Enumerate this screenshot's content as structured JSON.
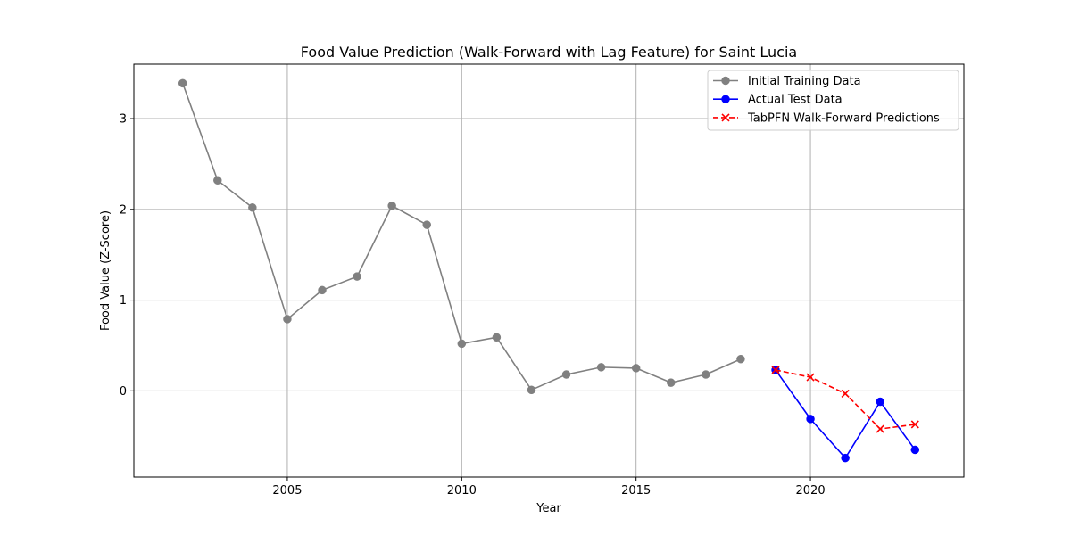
{
  "chart_data": {
    "type": "line",
    "title": "Food Value Prediction (Walk-Forward with Lag Feature) for Saint Lucia",
    "xlabel": "Year",
    "ylabel": "Food Value (Z-Score)",
    "xlim": [
      2000.6,
      2024.4
    ],
    "ylim": [
      -0.95,
      3.6
    ],
    "xticks": [
      2005,
      2010,
      2015,
      2020
    ],
    "yticks": [
      0,
      1,
      2,
      3
    ],
    "grid": true,
    "legend_position": "upper right",
    "series": [
      {
        "name": "Initial Training Data",
        "color": "#808080",
        "line_style": "solid",
        "marker": "circle",
        "x": [
          2002,
          2003,
          2004,
          2005,
          2006,
          2007,
          2008,
          2009,
          2010,
          2011,
          2012,
          2013,
          2014,
          2015,
          2016,
          2017,
          2018
        ],
        "y": [
          3.39,
          2.32,
          2.02,
          0.79,
          1.11,
          1.26,
          2.04,
          1.83,
          0.52,
          0.59,
          0.01,
          0.18,
          0.26,
          0.25,
          0.09,
          0.18,
          0.35
        ]
      },
      {
        "name": "Actual Test Data",
        "color": "#0000ff",
        "line_style": "solid",
        "marker": "circle",
        "x": [
          2019,
          2020,
          2021,
          2022,
          2023
        ],
        "y": [
          0.23,
          -0.31,
          -0.74,
          -0.12,
          -0.65
        ]
      },
      {
        "name": "TabPFN Walk-Forward Predictions",
        "color": "#ff0000",
        "line_style": "dashed",
        "marker": "x",
        "x": [
          2019,
          2020,
          2021,
          2022,
          2023
        ],
        "y": [
          0.23,
          0.15,
          -0.03,
          -0.42,
          -0.37
        ]
      }
    ]
  }
}
